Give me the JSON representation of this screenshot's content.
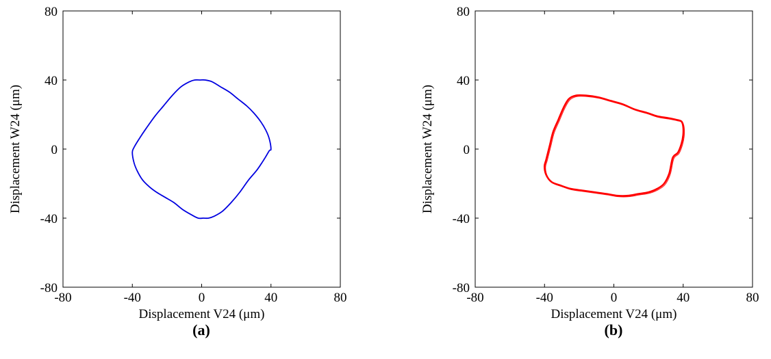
{
  "chart_data": [
    {
      "type": "line",
      "panel_label": "(a)",
      "xlabel": "Displacement V24 (μm)",
      "ylabel": "Displacement W24 (μm)",
      "xlim": [
        -80,
        80
      ],
      "ylim": [
        -80,
        80
      ],
      "xticks": [
        -80,
        -40,
        0,
        40,
        80
      ],
      "yticks": [
        -80,
        -40,
        0,
        40,
        80
      ],
      "grid": false,
      "series": [
        {
          "color": "#0000e0",
          "closed": true,
          "x": [
            40,
            39,
            37,
            34,
            30,
            26,
            21,
            16,
            11,
            6,
            2,
            -1,
            -4,
            -7,
            -12,
            -17,
            -22,
            -27,
            -32,
            -36,
            -39,
            -40,
            -39,
            -37,
            -34,
            -30,
            -26,
            -21,
            -16,
            -11,
            -6,
            -2,
            1,
            4,
            7,
            12,
            17,
            22,
            27,
            32,
            36,
            39,
            40
          ],
          "y": [
            0,
            6,
            11,
            16,
            21,
            25,
            29,
            33,
            36,
            39,
            40,
            40,
            40,
            39,
            36,
            31,
            25,
            19,
            12,
            6,
            1,
            -2,
            -8,
            -13,
            -18,
            -22,
            -25,
            -28,
            -31,
            -35,
            -38,
            -40,
            -40,
            -40,
            -39,
            -36,
            -31,
            -25,
            -18,
            -12,
            -6,
            -1,
            0
          ]
        }
      ]
    },
    {
      "type": "line",
      "panel_label": "(b)",
      "xlabel": "Displacement V24 (μm)",
      "ylabel": "Displacement W24 (μm)",
      "xlim": [
        -80,
        80
      ],
      "ylim": [
        -80,
        80
      ],
      "xticks": [
        -80,
        -40,
        0,
        40,
        80
      ],
      "yticks": [
        -80,
        -40,
        0,
        40,
        80
      ],
      "grid": false,
      "series": [
        {
          "color": "#ff0000",
          "closed": true,
          "x": [
            40,
            39,
            36,
            31,
            25,
            19,
            12,
            5,
            -2,
            -9,
            -16,
            -22,
            -26,
            -29,
            -32,
            -35,
            -37,
            -39,
            -40,
            -39,
            -36,
            -31,
            -25,
            -18,
            -11,
            -4,
            2,
            8,
            14,
            20,
            25,
            29,
            32,
            34,
            37,
            39,
            40,
            40
          ],
          "y": [
            13,
            16,
            17,
            18,
            19,
            21,
            23,
            26,
            28,
            30,
            31,
            31,
            29,
            24,
            17,
            10,
            2,
            -6,
            -10,
            -15,
            -19,
            -21,
            -23,
            -24,
            -25,
            -26,
            -27,
            -27,
            -26,
            -25,
            -23,
            -20,
            -14,
            -5,
            -2,
            3,
            8,
            13
          ]
        }
      ]
    }
  ]
}
